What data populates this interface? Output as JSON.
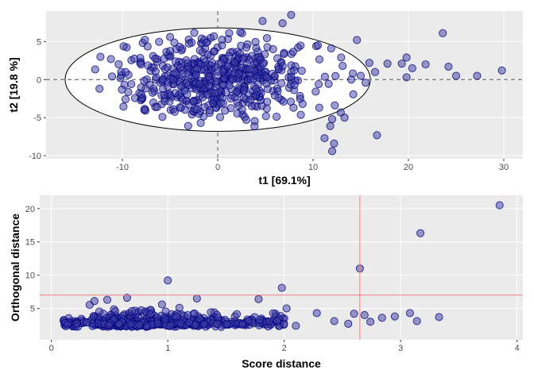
{
  "chart_data": [
    {
      "type": "scatter",
      "title": "",
      "xlabel": "t1 [69.1%]",
      "ylabel": "t2 [19.8 %]",
      "xlim": [
        -18,
        32
      ],
      "ylim": [
        -10.4,
        9
      ],
      "xticks": [
        -10,
        0,
        10,
        20,
        30
      ],
      "yticks": [
        -10,
        -5,
        0,
        5
      ],
      "x_tick_labels": [
        "-10",
        "0",
        "10",
        "20",
        "30"
      ],
      "y_tick_labels": [
        "-10",
        "-5",
        "0",
        "5"
      ],
      "grid": false,
      "reference_lines": {
        "x": 0,
        "y": 0,
        "style": "dashed",
        "color": "#7f7f7f"
      },
      "confidence_ellipse": {
        "center": [
          0,
          0
        ],
        "semi_axis_x": 16,
        "semi_axis_y": 6.8
      },
      "marker": {
        "fill": "#3b3ba1",
        "edge": "#000080",
        "opacity": 0.5
      },
      "bulk_cluster": {
        "count": 520,
        "center": [
          0,
          0
        ],
        "spread": [
          4.6,
          2.6
        ],
        "note_values_estimated": true
      },
      "points": [
        [
          7.7,
          8.5
        ],
        [
          4.7,
          7.7
        ],
        [
          6.8,
          7.4
        ],
        [
          1.2,
          6.1
        ],
        [
          -5.0,
          5.6
        ],
        [
          -0.4,
          5.7
        ],
        [
          10.5,
          4.5
        ],
        [
          11.9,
          4.1
        ],
        [
          14.6,
          5.2
        ],
        [
          15.9,
          2.2
        ],
        [
          16.5,
          1.0
        ],
        [
          15.0,
          0.5
        ],
        [
          14.0,
          0.0
        ],
        [
          15.5,
          -0.4
        ],
        [
          13.1,
          1.8
        ],
        [
          12.9,
          -4.3
        ],
        [
          12.0,
          -5.2
        ],
        [
          13.3,
          -5.0
        ],
        [
          11.8,
          -6.1
        ],
        [
          11.2,
          -7.7
        ],
        [
          12.2,
          -8.4
        ],
        [
          12.0,
          -9.4
        ],
        [
          16.7,
          -7.3
        ],
        [
          8.9,
          -3.2
        ],
        [
          6.9,
          -2.9
        ],
        [
          3.0,
          -5.3
        ],
        [
          -5.8,
          -4.9
        ],
        [
          -12.3,
          3.0
        ],
        [
          -11.2,
          2.7
        ],
        [
          -12.4,
          -1.2
        ],
        [
          -10.2,
          0.2
        ],
        [
          19.3,
          2.1
        ],
        [
          19.8,
          2.9
        ],
        [
          20.4,
          1.5
        ],
        [
          21.8,
          2.0
        ],
        [
          24.2,
          1.7
        ],
        [
          25.0,
          0.5
        ],
        [
          27.2,
          0.5
        ],
        [
          29.8,
          1.2
        ],
        [
          23.6,
          6.1
        ],
        [
          19.8,
          0.3
        ],
        [
          17.8,
          2.1
        ]
      ]
    },
    {
      "type": "scatter",
      "title": "",
      "xlabel": "Score distance",
      "ylabel": "Orthogonal distance",
      "xlim": [
        -0.1,
        4.05
      ],
      "ylim": [
        0.3,
        22
      ],
      "xticks": [
        0,
        1,
        2,
        3,
        4
      ],
      "yticks": [
        5,
        10,
        15,
        20
      ],
      "x_tick_labels": [
        "0",
        "1",
        "2",
        "3",
        "4"
      ],
      "y_tick_labels": [
        "5",
        "10",
        "15",
        "20"
      ],
      "grid": false,
      "cutoff_lines": {
        "score_distance": 2.65,
        "orthogonal_distance": 7.0,
        "color": "#f08080"
      },
      "marker": {
        "fill": "#3b3ba1",
        "edge": "#000080",
        "opacity": 0.5
      },
      "bulk_cluster": {
        "count": 520,
        "score_range": [
          0.1,
          2.0
        ],
        "orth_range": [
          1.5,
          4.5
        ],
        "note_values_estimated": true
      },
      "points": [
        [
          3.85,
          20.5
        ],
        [
          3.17,
          16.3
        ],
        [
          2.65,
          11.0
        ],
        [
          1.0,
          9.2
        ],
        [
          1.98,
          8.1
        ],
        [
          0.48,
          6.3
        ],
        [
          0.37,
          6.1
        ],
        [
          0.65,
          6.6
        ],
        [
          1.25,
          6.5
        ],
        [
          1.78,
          6.4
        ],
        [
          0.95,
          5.6
        ],
        [
          1.1,
          5.1
        ],
        [
          2.02,
          5.0
        ],
        [
          2.28,
          4.3
        ],
        [
          2.6,
          4.2
        ],
        [
          2.69,
          4.0
        ],
        [
          2.74,
          3.0
        ],
        [
          2.84,
          3.6
        ],
        [
          2.95,
          3.8
        ],
        [
          3.08,
          4.3
        ],
        [
          3.14,
          3.1
        ],
        [
          3.33,
          3.7
        ],
        [
          2.43,
          3.1
        ],
        [
          2.55,
          2.7
        ],
        [
          2.1,
          2.4
        ]
      ]
    }
  ]
}
